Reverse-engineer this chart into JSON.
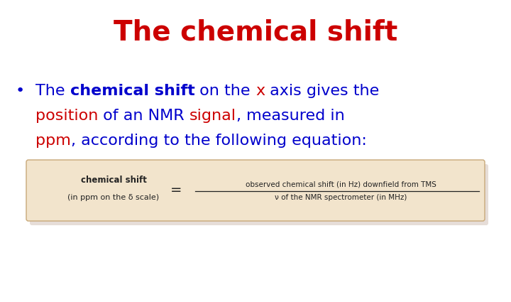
{
  "title": "The chemical shift",
  "title_color": "#cc0000",
  "title_fontsize": 28,
  "bg_color": "#ffffff",
  "fontsize_body": 16,
  "bullet_color": "#0000cc",
  "line1": [
    {
      "text": "The ",
      "color": "#0000cc",
      "bold": false
    },
    {
      "text": "chemical shift",
      "color": "#0000cc",
      "bold": true
    },
    {
      "text": " on the ",
      "color": "#0000cc",
      "bold": false
    },
    {
      "text": "x",
      "color": "#cc0000",
      "bold": false
    },
    {
      "text": " axis gives the",
      "color": "#0000cc",
      "bold": false
    }
  ],
  "line2": [
    {
      "text": "position",
      "color": "#cc0000",
      "bold": false
    },
    {
      "text": " of an NMR ",
      "color": "#0000cc",
      "bold": false
    },
    {
      "text": "signal",
      "color": "#cc0000",
      "bold": false
    },
    {
      "text": ", measured in",
      "color": "#0000cc",
      "bold": false
    }
  ],
  "line3": [
    {
      "text": "ppm",
      "color": "#cc0000",
      "bold": false
    },
    {
      "text": ", according to the following equation:",
      "color": "#0000cc",
      "bold": false
    }
  ],
  "box_bg": "#f2e4cc",
  "box_border": "#c8a878",
  "box_shadow": "#b8a090",
  "box_text_color": "#222222",
  "box_left_bold": "chemical shift",
  "box_left_sub": "(in ppm on the δ scale)",
  "box_numerator": "observed chemical shift (in Hz) downfield from TMS",
  "box_denominator": "ν of the NMR spectrometer (in MHz)"
}
